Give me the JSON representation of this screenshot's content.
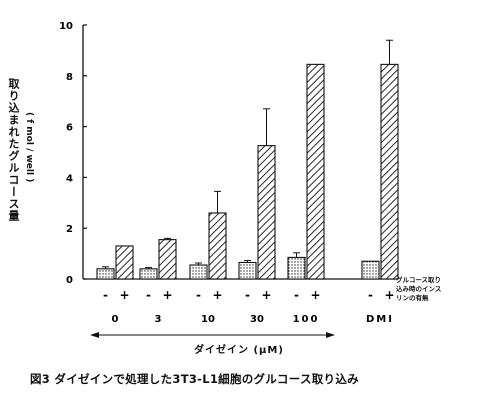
{
  "chart_data": {
    "type": "bar",
    "ylabel": "取り込まれたグルコース量",
    "yunit": "( f mol / well )",
    "ylim": [
      0,
      10
    ],
    "yticks": [
      "0",
      "2",
      "4",
      "6",
      "8",
      "10"
    ],
    "groups": [
      "0",
      "3",
      "10",
      "30",
      "100",
      "DMI"
    ],
    "signs": [
      "-",
      "+"
    ],
    "xlabel": "ダイゼイン (μM)",
    "legend_note": [
      "グルコース取り",
      "込み時のインス",
      "リンの有無"
    ],
    "series": [
      {
        "values": [
          0.4,
          0.4,
          0.55,
          0.65,
          0.85,
          0.7
        ],
        "errors": [
          0.08,
          0.05,
          0.08,
          0.08,
          0.18,
          0.0
        ]
      },
      {
        "values": [
          1.3,
          1.55,
          2.6,
          5.25,
          8.45,
          8.45
        ],
        "errors": [
          0.0,
          0.05,
          0.85,
          1.45,
          0.0,
          0.95
        ]
      }
    ],
    "colors": {
      "axis": "#111111",
      "bar_fill": "#ffffff"
    }
  },
  "caption": "図3 ダイゼインで処理した3T3-L1細胞のグルコース取り込み"
}
